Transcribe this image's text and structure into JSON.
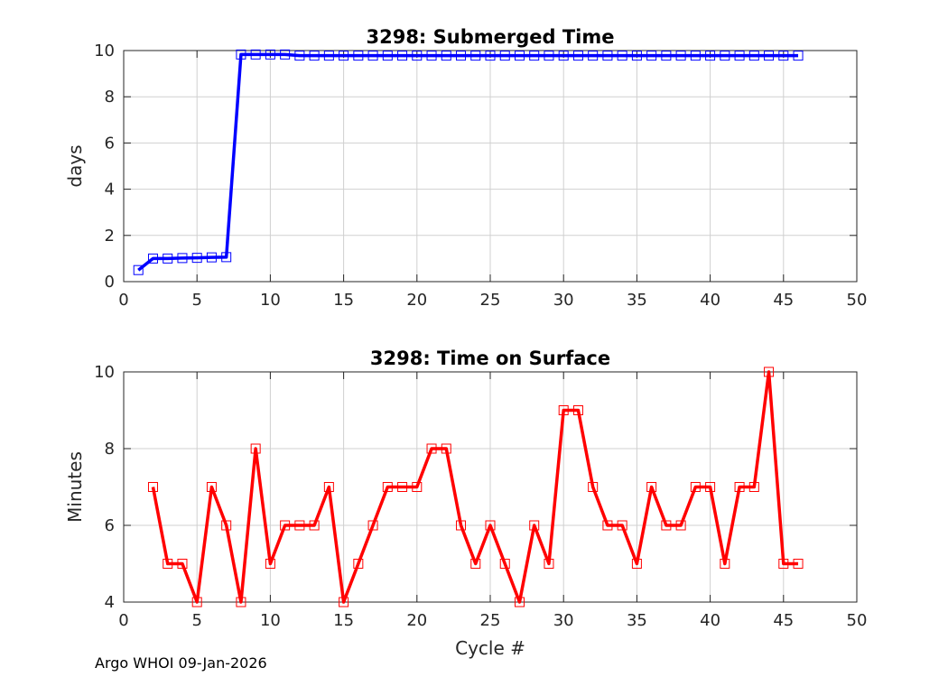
{
  "footer": "Argo WHOI 09-Jan-2026",
  "colors": {
    "top_series": "#0000ff",
    "bottom_series": "#ff0000",
    "grid": "#d0d0d0",
    "axis": "#262626"
  },
  "chart_data": [
    {
      "type": "line",
      "title": "3298: Submerged Time",
      "xlabel": "",
      "ylabel": "days",
      "xlim": [
        0,
        50
      ],
      "ylim": [
        0,
        10
      ],
      "xticks": [
        0,
        5,
        10,
        15,
        20,
        25,
        30,
        35,
        40,
        45,
        50
      ],
      "yticks": [
        0,
        2,
        4,
        6,
        8,
        10
      ],
      "grid": true,
      "marker": "square",
      "series": [
        {
          "name": "Submerged Time",
          "x": [
            1,
            2,
            3,
            4,
            5,
            6,
            7,
            8,
            9,
            10,
            11,
            12,
            13,
            14,
            15,
            16,
            17,
            18,
            19,
            20,
            21,
            22,
            23,
            24,
            25,
            26,
            27,
            28,
            29,
            30,
            31,
            32,
            33,
            34,
            35,
            36,
            37,
            38,
            39,
            40,
            41,
            42,
            43,
            44,
            45,
            46
          ],
          "y": [
            0.5,
            1.0,
            1.0,
            1.02,
            1.03,
            1.05,
            1.06,
            9.83,
            9.83,
            9.83,
            9.83,
            9.78,
            9.78,
            9.78,
            9.78,
            9.78,
            9.78,
            9.78,
            9.78,
            9.78,
            9.78,
            9.78,
            9.78,
            9.78,
            9.78,
            9.78,
            9.78,
            9.78,
            9.78,
            9.78,
            9.78,
            9.78,
            9.78,
            9.78,
            9.78,
            9.78,
            9.78,
            9.78,
            9.78,
            9.78,
            9.78,
            9.78,
            9.78,
            9.78,
            9.78,
            9.78
          ]
        }
      ]
    },
    {
      "type": "line",
      "title": "3298: Time on Surface",
      "xlabel": "Cycle #",
      "ylabel": "Minutes",
      "xlim": [
        0,
        50
      ],
      "ylim": [
        4,
        10
      ],
      "xticks": [
        0,
        5,
        10,
        15,
        20,
        25,
        30,
        35,
        40,
        45,
        50
      ],
      "yticks": [
        4,
        6,
        8,
        10
      ],
      "grid": true,
      "marker": "square",
      "series": [
        {
          "name": "Time on Surface",
          "x": [
            2,
            3,
            4,
            5,
            6,
            7,
            8,
            9,
            10,
            11,
            12,
            13,
            14,
            15,
            16,
            17,
            18,
            19,
            20,
            21,
            22,
            23,
            24,
            25,
            26,
            27,
            28,
            29,
            30,
            31,
            32,
            33,
            34,
            35,
            36,
            37,
            38,
            39,
            40,
            41,
            42,
            43,
            44,
            45,
            46
          ],
          "y": [
            7,
            5,
            5,
            4,
            7,
            6,
            4,
            8,
            5,
            6,
            6,
            6,
            7,
            4,
            5,
            6,
            7,
            7,
            7,
            8,
            8,
            6,
            5,
            6,
            5,
            4,
            6,
            5,
            9,
            9,
            7,
            6,
            6,
            5,
            7,
            6,
            6,
            7,
            7,
            5,
            7,
            7,
            10,
            5,
            5
          ]
        }
      ]
    }
  ]
}
